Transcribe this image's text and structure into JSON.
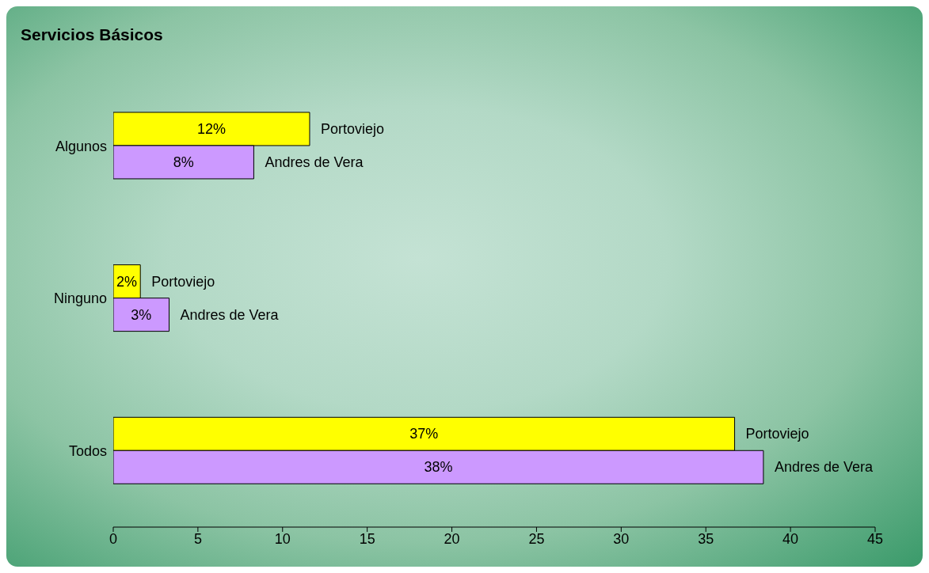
{
  "chart_data": {
    "type": "bar",
    "orientation": "horizontal",
    "title": "Servicios Básicos",
    "categories": [
      "Algunos",
      "Ninguno",
      "Todos"
    ],
    "series": [
      {
        "name": "Portoviejo",
        "color": "#ffff00",
        "values": [
          11.6,
          1.6,
          36.7
        ],
        "value_labels": [
          "12%",
          "2%",
          "37%"
        ]
      },
      {
        "name": "Andres de Vera",
        "color": "#cc99ff",
        "values": [
          8.3,
          3.3,
          38.4
        ],
        "value_labels": [
          "8%",
          "3%",
          "38%"
        ]
      }
    ],
    "xlim": [
      0,
      45
    ],
    "xticks": [
      0,
      5,
      10,
      15,
      20,
      25,
      30,
      35,
      40,
      45
    ],
    "grid": false,
    "legend": false
  }
}
